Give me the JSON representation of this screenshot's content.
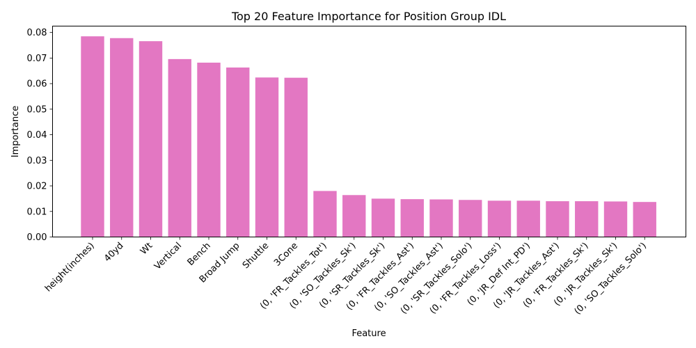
{
  "chart_data": {
    "type": "bar",
    "title": "Top 20 Feature Importance for Position Group IDL",
    "xlabel": "Feature",
    "ylabel": "Importance",
    "ylim": [
      0,
      0.0825
    ],
    "yticks": [
      "0.00",
      "0.01",
      "0.02",
      "0.03",
      "0.04",
      "0.05",
      "0.06",
      "0.07",
      "0.08"
    ],
    "bar_color": "#e377c2",
    "grid": false,
    "categories": [
      "height(inches)",
      "40yd",
      "Wt",
      "Vertical",
      "Bench",
      "Broad Jump",
      "Shuttle",
      "3Cone",
      "(0, 'FR_Tackles_Tot')",
      "(0, 'SO_Tackles_Sk')",
      "(0, 'SR_Tackles_Sk')",
      "(0, 'FR_Tackles_Ast')",
      "(0, 'SO_Tackles_Ast')",
      "(0, 'SR_Tackles_Solo')",
      "(0, 'FR_Tackles_Loss')",
      "(0, 'JR_Def Int_PD')",
      "(0, 'JR_Tackles_Ast')",
      "(0, 'FR_Tackles_Sk')",
      "(0, 'JR_Tackles_Sk')",
      "(0, 'SO_Tackles_Solo')"
    ],
    "values": [
      0.0785,
      0.0778,
      0.0766,
      0.0696,
      0.0682,
      0.0663,
      0.0624,
      0.0623,
      0.018,
      0.0164,
      0.015,
      0.0148,
      0.0147,
      0.0145,
      0.0142,
      0.0142,
      0.014,
      0.014,
      0.0139,
      0.0137
    ]
  }
}
